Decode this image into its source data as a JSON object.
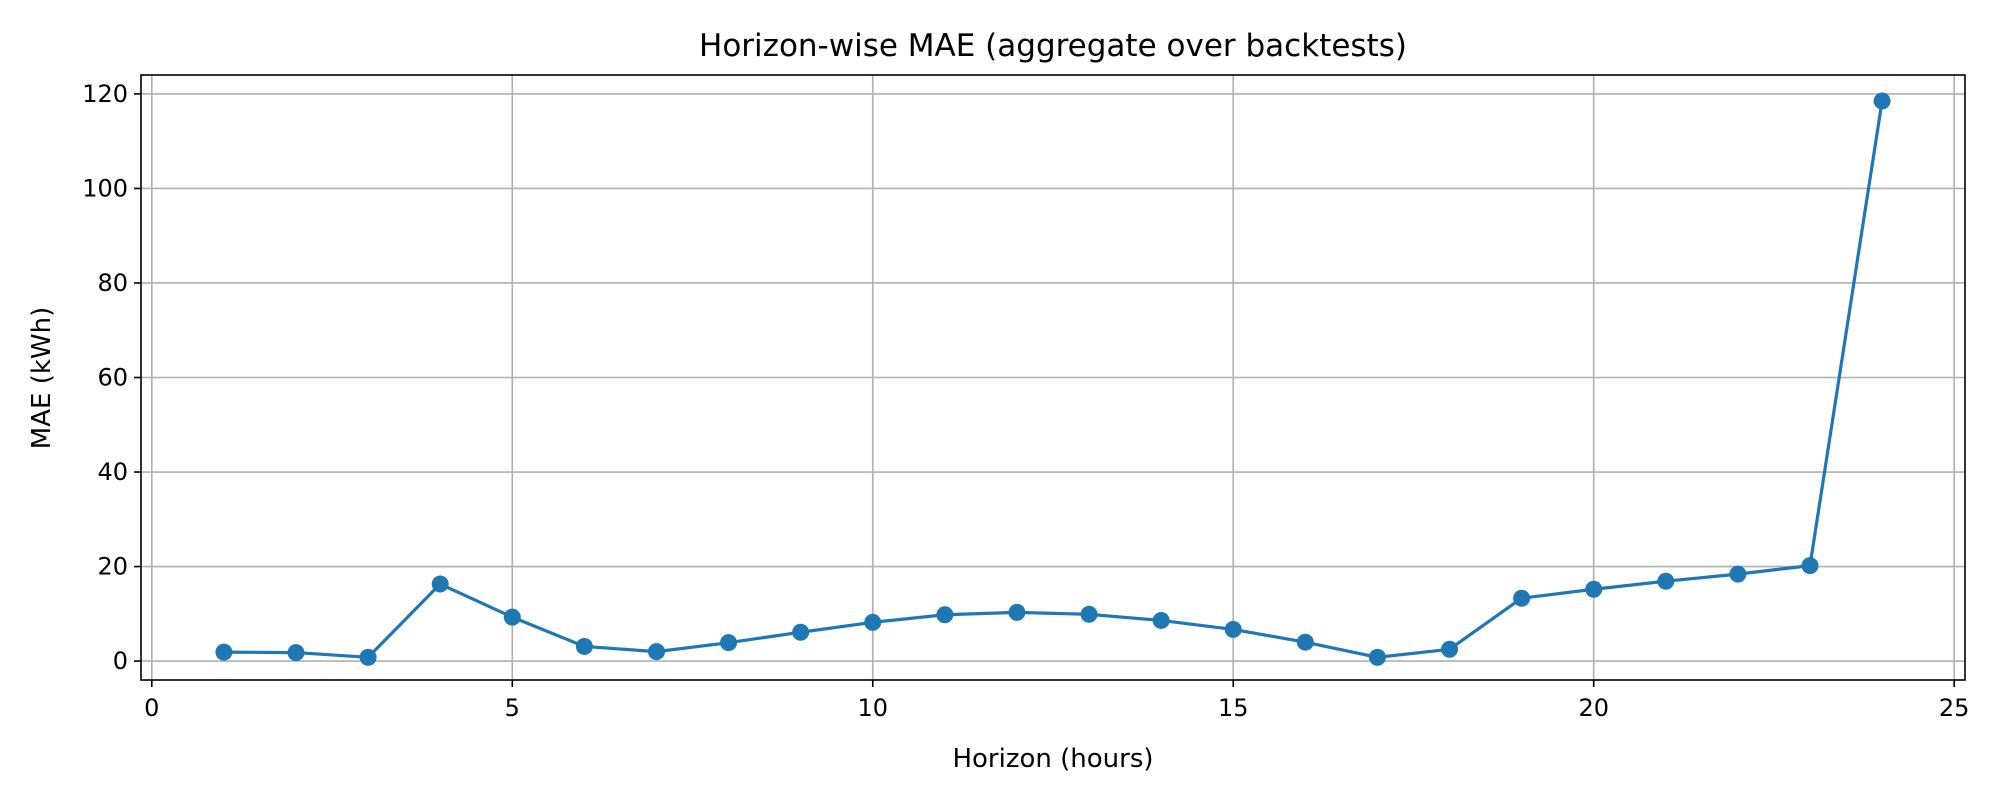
{
  "chart_data": {
    "type": "line",
    "title": "Horizon-wise MAE (aggregate over backtests)",
    "xlabel": "Horizon (hours)",
    "ylabel": "MAE (kWh)",
    "xlim": [
      -0.15,
      25.15
    ],
    "ylim": [
      -4,
      124
    ],
    "xticks": [
      0,
      5,
      10,
      15,
      20,
      25
    ],
    "yticks": [
      0,
      20,
      40,
      60,
      80,
      100,
      120
    ],
    "grid": true,
    "legend": "none",
    "series": [
      {
        "color": "#1f77b4",
        "marker": "circle",
        "x": [
          1,
          2,
          3,
          4,
          5,
          6,
          7,
          8,
          9,
          10,
          11,
          12,
          13,
          14,
          15,
          16,
          17,
          18,
          19,
          20,
          21,
          22,
          23,
          24
        ],
        "y": [
          1.9,
          1.8,
          0.8,
          16.3,
          9.3,
          3.1,
          2.0,
          3.9,
          6.1,
          8.2,
          9.8,
          10.3,
          9.9,
          8.6,
          6.7,
          4.0,
          0.8,
          2.5,
          13.3,
          15.2,
          16.9,
          18.4,
          20.2,
          118.5
        ]
      }
    ]
  }
}
